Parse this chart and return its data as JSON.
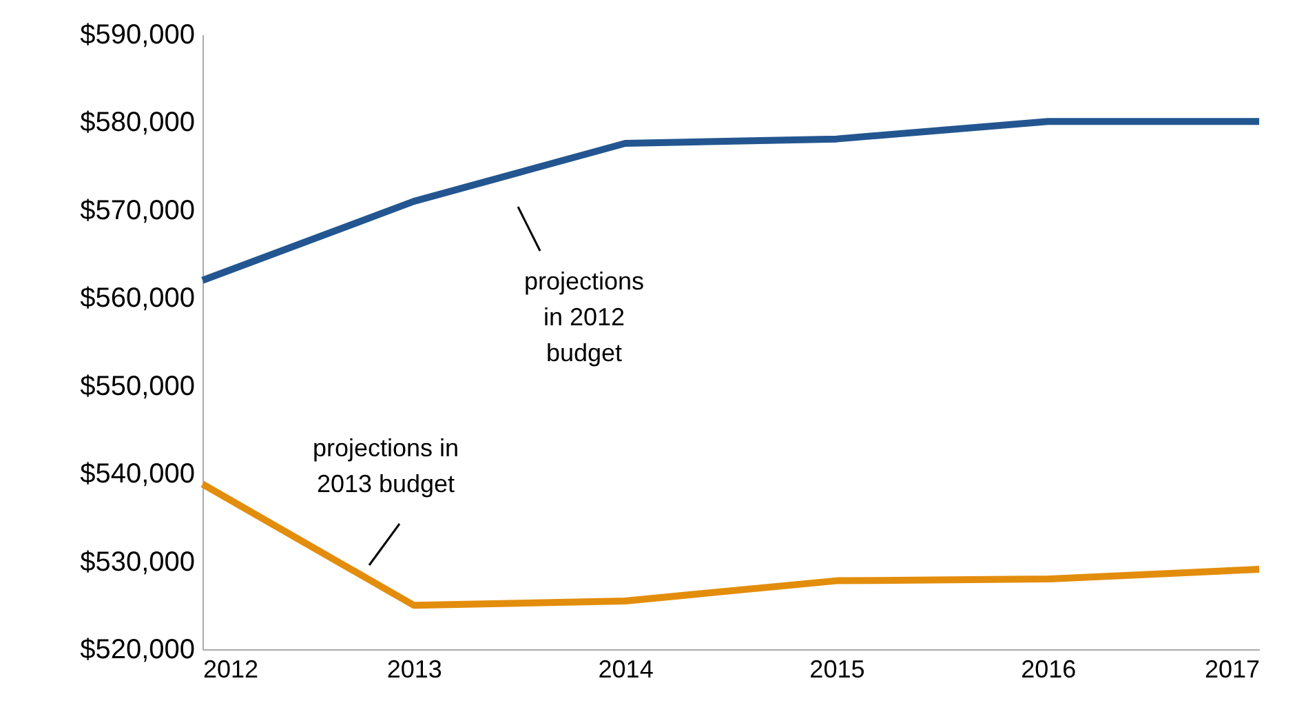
{
  "chart_data": {
    "type": "line",
    "x": [
      2012,
      2013,
      2014,
      2015,
      2016,
      2017
    ],
    "series": [
      {
        "color": "#235690",
        "values": [
          562000,
          571000,
          577600,
          578100,
          580100,
          580100
        ]
      },
      {
        "color": "#e38d0c",
        "values": [
          538800,
          525000,
          525500,
          527800,
          528000,
          529100
        ]
      }
    ],
    "xlim": [
      2012,
      2017
    ],
    "xticks": [
      2012,
      2013,
      2014,
      2015,
      2016,
      2017
    ],
    "ylim": [
      520000,
      590000
    ],
    "yticks": [
      {
        "value": 520000,
        "label": "$520,000"
      },
      {
        "value": 530000,
        "label": "$530,000"
      },
      {
        "value": 540000,
        "label": "$540,000"
      },
      {
        "value": 550000,
        "label": "$550,000"
      },
      {
        "value": 560000,
        "label": "$560,000"
      },
      {
        "value": 570000,
        "label": "$570,000"
      },
      {
        "value": 580000,
        "label": "$580,000"
      },
      {
        "value": 590000,
        "label": "$590,000"
      }
    ],
    "annotations": [
      "projections\nin 2012\nbudget",
      "projections in\n2013 budget"
    ],
    "grid": false,
    "marker": "none",
    "line_style": "solid"
  }
}
